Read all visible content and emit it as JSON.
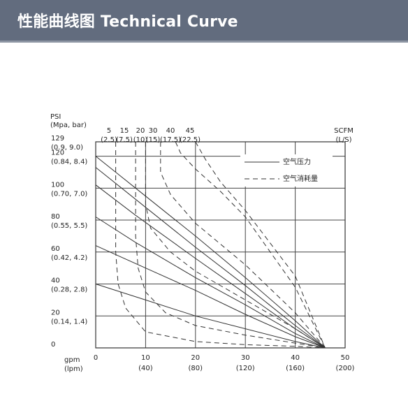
{
  "header": {
    "title": "性能曲线图 Technical Curve",
    "background": "#626c7e"
  },
  "chart_data": {
    "type": "line",
    "title": "",
    "y_axis": {
      "label": [
        "PSI",
        "(Mpa, bar)"
      ],
      "range": [
        0,
        129
      ],
      "ticks": [
        {
          "value": 0,
          "label": "0",
          "sub": ""
        },
        {
          "value": 20,
          "label": "20",
          "sub": "(0.14, 1.4)"
        },
        {
          "value": 40,
          "label": "40",
          "sub": "(0.28, 2.8)"
        },
        {
          "value": 60,
          "label": "60",
          "sub": "(0.42, 4.2)"
        },
        {
          "value": 80,
          "label": "80",
          "sub": "(0.55, 5.5)"
        },
        {
          "value": 100,
          "label": "100",
          "sub": "(0.70, 7.0)"
        },
        {
          "value": 120,
          "label": "120",
          "sub": "(0.84, 8.4)"
        },
        {
          "value": 129,
          "label": "129",
          "sub": "(0.9, 9.0)"
        }
      ]
    },
    "x_axis": {
      "label": [
        "gpm",
        "(lpm)"
      ],
      "range": [
        0,
        50
      ],
      "ticks": [
        {
          "value": 0,
          "label": "0",
          "sub": ""
        },
        {
          "value": 10,
          "label": "10",
          "sub": "(40)"
        },
        {
          "value": 20,
          "label": "20",
          "sub": "(80)"
        },
        {
          "value": 30,
          "label": "30",
          "sub": "(120)"
        },
        {
          "value": 40,
          "label": "40",
          "sub": "(160)"
        },
        {
          "value": 50,
          "label": "50",
          "sub": "(200)"
        }
      ]
    },
    "top_axis": {
      "label": [
        "SCFM",
        "(L/S)"
      ],
      "ticks": [
        {
          "value": 5,
          "sub": "(2.5)"
        },
        {
          "value": 15,
          "sub": "(7.5)"
        },
        {
          "value": 20,
          "sub": "(10)"
        },
        {
          "value": 30,
          "sub": "(15)"
        },
        {
          "value": 40,
          "sub": "(17.5)"
        },
        {
          "value": 45,
          "sub": "(22.5)"
        }
      ]
    },
    "legend": {
      "placement": "top-right",
      "entries": [
        {
          "label": "空气压力",
          "style": "solid"
        },
        {
          "label": "空气消耗量",
          "style": "dashed"
        }
      ]
    },
    "grid": true,
    "series": [
      {
        "style": "solid",
        "x": [
          0,
          8,
          20,
          30,
          40,
          46
        ],
        "y": [
          120,
          100,
          70,
          44,
          17,
          0
        ]
      },
      {
        "style": "solid",
        "x": [
          0,
          8,
          20,
          30,
          40,
          46
        ],
        "y": [
          113,
          93,
          63,
          39,
          14,
          0
        ]
      },
      {
        "style": "solid",
        "x": [
          0,
          8,
          20,
          30,
          40,
          46
        ],
        "y": [
          102,
          83,
          56,
          34,
          12,
          0
        ]
      },
      {
        "style": "solid",
        "x": [
          0,
          8,
          20,
          30,
          40,
          46
        ],
        "y": [
          82,
          66,
          44,
          27,
          9,
          0
        ]
      },
      {
        "style": "solid",
        "x": [
          0,
          10,
          20,
          30,
          40,
          46
        ],
        "y": [
          64,
          50,
          36,
          21,
          7,
          0
        ]
      },
      {
        "style": "solid",
        "x": [
          0,
          10,
          20,
          30,
          40,
          46
        ],
        "y": [
          40,
          30,
          20,
          12,
          4,
          0
        ]
      },
      {
        "style": "dashed",
        "x": [
          4,
          4,
          4.5,
          6,
          10,
          20,
          30,
          40,
          46
        ],
        "y": [
          129,
          60,
          40,
          25,
          10,
          4,
          2,
          1,
          0
        ]
      },
      {
        "style": "dashed",
        "x": [
          8,
          8,
          8.5,
          10,
          14,
          20,
          30,
          40,
          46
        ],
        "y": [
          129,
          70,
          50,
          35,
          22,
          14,
          8,
          3,
          0
        ]
      },
      {
        "style": "dashed",
        "x": [
          10,
          10,
          11,
          15,
          20,
          30,
          40,
          46
        ],
        "y": [
          129,
          90,
          75,
          60,
          48,
          30,
          12,
          0
        ]
      },
      {
        "style": "dashed",
        "x": [
          13,
          13,
          15,
          20,
          30,
          40,
          46
        ],
        "y": [
          129,
          110,
          96,
          78,
          52,
          22,
          0
        ]
      },
      {
        "style": "dashed",
        "x": [
          16,
          17,
          20,
          25,
          30,
          40,
          46
        ],
        "y": [
          129,
          122,
          112,
          98,
          82,
          38,
          0
        ]
      },
      {
        "style": "dashed",
        "x": [
          20,
          22,
          25,
          30,
          40,
          46
        ],
        "y": [
          129,
          118,
          104,
          86,
          45,
          0
        ]
      }
    ]
  }
}
